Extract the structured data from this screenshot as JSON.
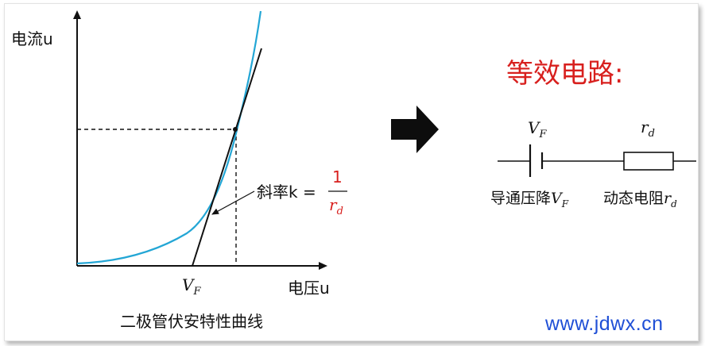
{
  "diagram": {
    "y_axis_label": "电流u",
    "x_axis_label": "电压u",
    "vf_label": "V_F",
    "caption": "二极管伏安特性曲线",
    "slope_text": "斜率k =",
    "slope_fraction": {
      "numerator": "1",
      "denominator": "r_d"
    },
    "equiv_title": "等效电路:",
    "circuit": {
      "vf_label": "V_F",
      "rd_label": "r_d",
      "voltage_drop_label": "导通压降V_F",
      "resistance_label": "动态电阻r_d"
    }
  },
  "colors": {
    "curve": "#23a6d5",
    "accent_red": "#d8201e",
    "watermark": "#1f4fd6"
  },
  "watermark": "www.jdwx.cn"
}
